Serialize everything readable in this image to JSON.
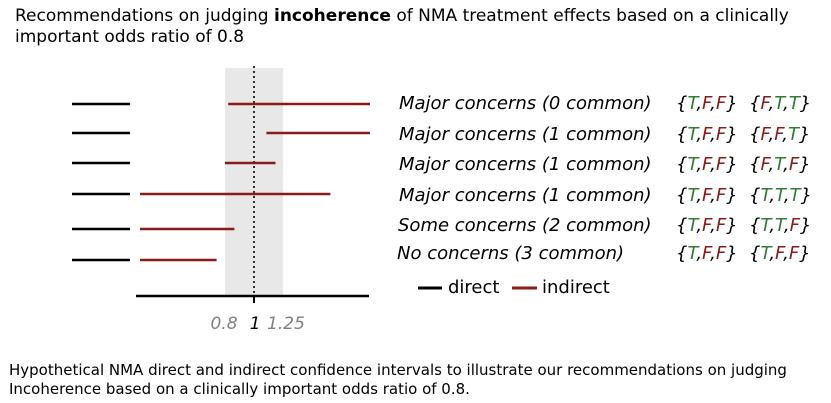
{
  "title": {
    "before": "Recommendations on judging ",
    "bold": "incoherence",
    "after": " of NMA treatment effects based on a clinically important odds ratio of 0.8"
  },
  "caption": "Hypothetical NMA direct and indirect confidence intervals to illustrate our recommendations on judging Incoherence based on a clinically important odds ratio of 0.8.",
  "axis": {
    "ticks": [
      {
        "value": 0.8,
        "label": "0.8",
        "color": "#808080"
      },
      {
        "value": 1,
        "label": "1",
        "color": "#000000"
      },
      {
        "value": 1.25,
        "label": "1.25",
        "color": "#808080"
      }
    ],
    "null_value": 1,
    "shaded_range": [
      0.8,
      1.25
    ],
    "shade_color": "#e8e8e8"
  },
  "legend": {
    "direct": {
      "label": "direct",
      "color": "#000000"
    },
    "indirect": {
      "label": "indirect",
      "color": "#8b1a1a"
    }
  },
  "colors": {
    "true": "#2e7d32",
    "false": "#8b1a1a",
    "brace": "#000000"
  },
  "rows": [
    {
      "judgement": "Major concerns (0 common)",
      "set1": [
        "T",
        "F",
        "F"
      ],
      "set2": [
        "F",
        "T",
        "T"
      ],
      "indirect_ci": [
        0.82,
        2.5
      ]
    },
    {
      "judgement": "Major concerns (1 common)",
      "set1": [
        "T",
        "F",
        "F"
      ],
      "set2": [
        "F",
        "F",
        "T"
      ],
      "indirect_ci": [
        1.1,
        2.5
      ]
    },
    {
      "judgement": "Major concerns (1 common)",
      "set1": [
        "T",
        "F",
        "F"
      ],
      "set2": [
        "F",
        "T",
        "F"
      ],
      "indirect_ci": [
        0.8,
        1.18
      ]
    },
    {
      "judgement": "Major concerns (1 common)",
      "set1": [
        "T",
        "F",
        "F"
      ],
      "set2": [
        "T",
        "T",
        "T"
      ],
      "indirect_ci": [
        0.4,
        1.8
      ]
    },
    {
      "judgement": "Some concerns (2 common)",
      "set1": [
        "T",
        "F",
        "F"
      ],
      "set2": [
        "T",
        "T",
        "F"
      ],
      "indirect_ci": [
        0.4,
        0.86
      ]
    },
    {
      "judgement": "No concerns (3 common)",
      "set1": [
        "T",
        "F",
        "F"
      ],
      "set2": [
        "T",
        "F",
        "F"
      ],
      "indirect_ci": [
        0.4,
        0.75
      ]
    }
  ]
}
